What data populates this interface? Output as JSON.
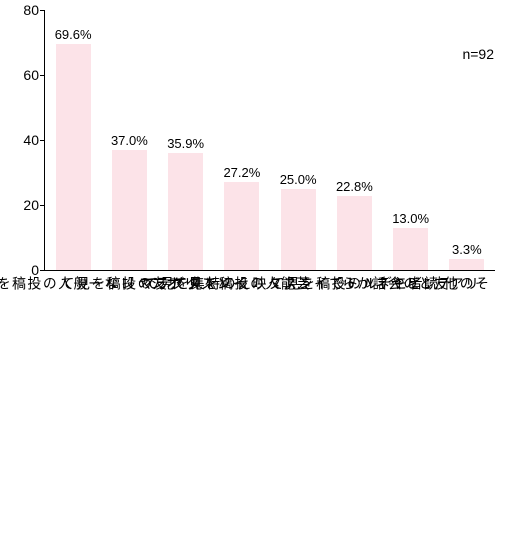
{
  "chart": {
    "type": "bar",
    "note": "n=92",
    "note_fontsize": 14,
    "ylim": [
      0,
      80
    ],
    "ytick_step": 20,
    "yticks": [
      0,
      20,
      40,
      60,
      80
    ],
    "bar_color": "#fce3e8",
    "axis_color": "#000000",
    "text_color": "#000000",
    "background_color": "#ffffff",
    "value_fontsize": 13,
    "label_fontsize": 14,
    "bar_width_ratio": 0.62,
    "categories": [
      "オシャレな一般人の投稿を見て",
      "リア友の投稿を見て",
      "インスタグラマー",
      "芸能人の投稿を見て",
      "テレビやネットでインスタ映えの特集を見て",
      "読者モデルの投稿を見て",
      "リア友との会話から",
      "その他"
    ],
    "values": [
      69.6,
      37.0,
      35.9,
      27.2,
      25.0,
      22.8,
      13.0,
      3.3
    ],
    "value_labels": [
      "69.6%",
      "37.0%",
      "35.9%",
      "27.2%",
      "25.0%",
      "22.8%",
      "13.0%",
      "3.3%"
    ]
  }
}
